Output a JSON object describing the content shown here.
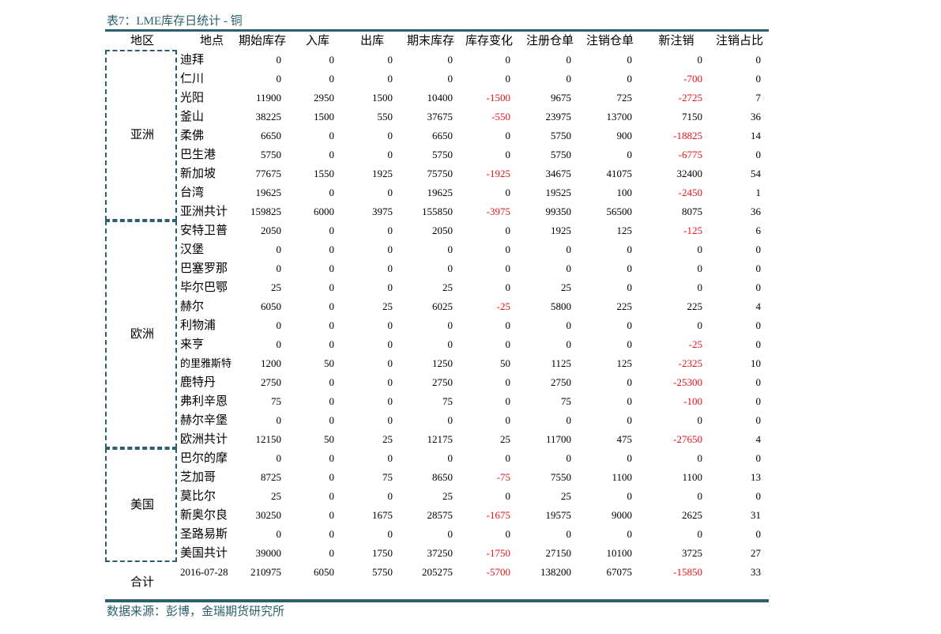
{
  "title": "表7：LME库存日统计 - 铜",
  "table": {
    "header": [
      "地区",
      "地点",
      "期始库存",
      "入库",
      "出库",
      "期末库存",
      "库存变化",
      "注册仓单",
      "注销仓单",
      "新注销",
      "注销占比"
    ],
    "groups": [
      {
        "region": "亚洲",
        "rows": [
          [
            "迪拜",
            0,
            0,
            0,
            0,
            0,
            0,
            0,
            0,
            0
          ],
          [
            "仁川",
            0,
            0,
            0,
            0,
            0,
            0,
            0,
            -700,
            0
          ],
          [
            "光阳",
            11900,
            2950,
            1500,
            10400,
            -1500,
            9675,
            725,
            -2725,
            7
          ],
          [
            "釜山",
            38225,
            1500,
            550,
            37675,
            -550,
            23975,
            13700,
            7150,
            36
          ],
          [
            "柔佛",
            6650,
            0,
            0,
            6650,
            0,
            5750,
            900,
            -18825,
            14
          ],
          [
            "巴生港",
            5750,
            0,
            0,
            5750,
            0,
            5750,
            0,
            -6775,
            0
          ],
          [
            "新加坡",
            77675,
            1550,
            1925,
            75750,
            -1925,
            34675,
            41075,
            32400,
            54
          ],
          [
            "台湾",
            19625,
            0,
            0,
            19625,
            0,
            19525,
            100,
            -2450,
            1
          ],
          [
            "亚洲共计",
            159825,
            6000,
            3975,
            155850,
            -3975,
            99350,
            56500,
            8075,
            36
          ]
        ]
      },
      {
        "region": "欧洲",
        "rows": [
          [
            "安特卫普",
            2050,
            0,
            0,
            2050,
            0,
            1925,
            125,
            -125,
            6
          ],
          [
            "汉堡",
            0,
            0,
            0,
            0,
            0,
            0,
            0,
            0,
            0
          ],
          [
            "巴塞罗那",
            0,
            0,
            0,
            0,
            0,
            0,
            0,
            0,
            0
          ],
          [
            "毕尔巴鄂",
            25,
            0,
            0,
            25,
            0,
            25,
            0,
            0,
            0
          ],
          [
            "赫尔",
            6050,
            0,
            25,
            6025,
            -25,
            5800,
            225,
            225,
            4
          ],
          [
            "利物浦",
            0,
            0,
            0,
            0,
            0,
            0,
            0,
            0,
            0
          ],
          [
            "来亨",
            0,
            0,
            0,
            0,
            0,
            0,
            0,
            -25,
            0
          ],
          [
            "的里雅斯特",
            1200,
            50,
            0,
            1250,
            50,
            1125,
            125,
            -2325,
            10
          ],
          [
            "鹿特丹",
            2750,
            0,
            0,
            2750,
            0,
            2750,
            0,
            -25300,
            0
          ],
          [
            "弗利辛恩",
            75,
            0,
            0,
            75,
            0,
            75,
            0,
            -100,
            0
          ],
          [
            "赫尔辛堡",
            0,
            0,
            0,
            0,
            0,
            0,
            0,
            0,
            0
          ],
          [
            "欧洲共计",
            12150,
            50,
            25,
            12175,
            25,
            11700,
            475,
            -27650,
            4
          ]
        ]
      },
      {
        "region": "美国",
        "rows": [
          [
            "巴尔的摩",
            0,
            0,
            0,
            0,
            0,
            0,
            0,
            0,
            0
          ],
          [
            "芝加哥",
            8725,
            0,
            75,
            8650,
            -75,
            7550,
            1100,
            1100,
            13
          ],
          [
            "莫比尔",
            25,
            0,
            0,
            25,
            0,
            25,
            0,
            0,
            0
          ],
          [
            "新奥尔良",
            30250,
            0,
            1675,
            28575,
            -1675,
            19575,
            9000,
            2625,
            31
          ],
          [
            "圣路易斯",
            0,
            0,
            0,
            0,
            0,
            0,
            0,
            0,
            0
          ],
          [
            "美国共计",
            39000,
            0,
            1750,
            37250,
            -1750,
            27150,
            10100,
            3725,
            27
          ]
        ]
      }
    ],
    "total": {
      "region": "合计",
      "row": [
        "2016-07-28",
        210975,
        6050,
        5750,
        205275,
        -5700,
        138200,
        67075,
        -15850,
        33
      ]
    }
  },
  "source": "数据来源：彭博，金瑞期货研究所"
}
